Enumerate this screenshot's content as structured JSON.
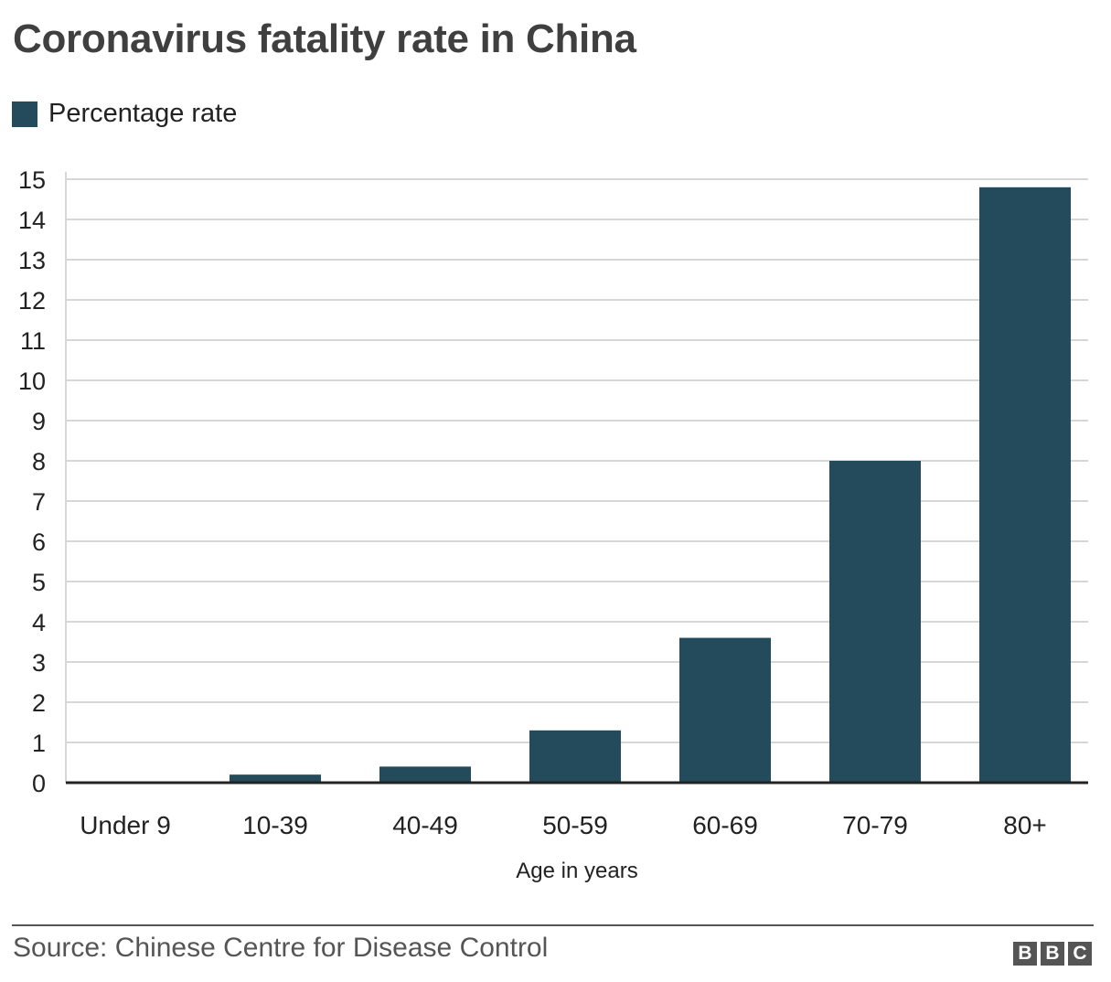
{
  "chart_data": {
    "type": "bar",
    "title": "Coronavirus fatality rate in China",
    "xlabel": "Age in years",
    "ylabel": "",
    "categories": [
      "Under 9",
      "10-39",
      "40-49",
      "50-59",
      "60-69",
      "70-79",
      "80+"
    ],
    "series": [
      {
        "name": "Percentage rate",
        "values": [
          0,
          0.2,
          0.4,
          1.3,
          3.6,
          8.0,
          14.8
        ]
      }
    ],
    "ylim": [
      0,
      15
    ],
    "yticks": [
      "0",
      "1",
      "2",
      "3",
      "4",
      "5",
      "6",
      "7",
      "8",
      "9",
      "10",
      "11",
      "12",
      "13",
      "14",
      "15"
    ],
    "grid": true,
    "legend_position": "top-left"
  },
  "footer": {
    "source": "Source: Chinese Centre for Disease Control",
    "logo_letters": [
      "B",
      "B",
      "C"
    ]
  },
  "colors": {
    "bar": "#234b5c",
    "grid": "#d6d6d6",
    "axis": "#222222",
    "title": "#3f3f3f",
    "source_text": "#555555",
    "footer_rule": "#555555",
    "logo_box": "#555555"
  }
}
